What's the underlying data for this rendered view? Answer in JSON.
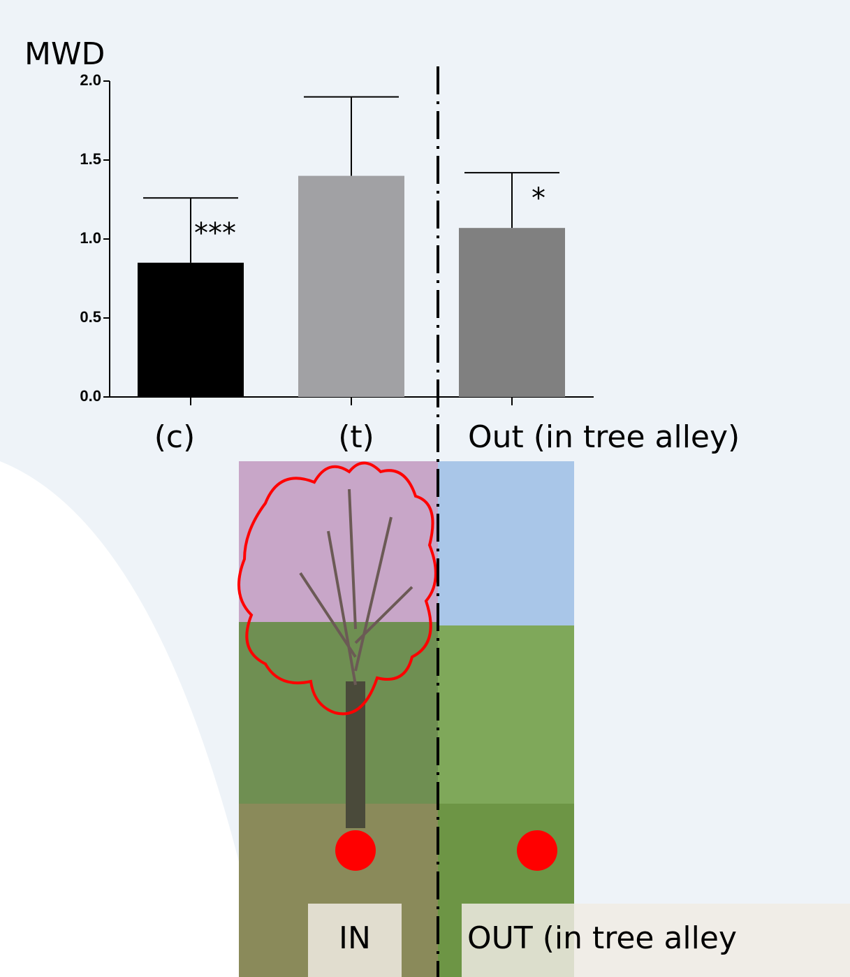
{
  "chart_data": {
    "type": "bar",
    "y_label": "MWD",
    "categories": [
      "(c)",
      "(t)",
      "Out (in tree alley)"
    ],
    "values": [
      0.85,
      1.4,
      1.07
    ],
    "errors": [
      0.41,
      0.5,
      0.35
    ],
    "colors": [
      "#000000",
      "#a1a1a4",
      "#808080"
    ],
    "annotations": [
      "***",
      null,
      "*"
    ],
    "ylim": [
      0,
      2
    ],
    "yticks": [
      {
        "value": 0,
        "label": "0.0"
      },
      {
        "value": 0.5,
        "label": "0.5"
      },
      {
        "value": 1,
        "label": "1.0"
      },
      {
        "value": 1.5,
        "label": "1.5"
      },
      {
        "value": 2,
        "label": "2.0"
      }
    ],
    "photo_labels": [
      "IN",
      "OUT (in tree alley"
    ]
  }
}
